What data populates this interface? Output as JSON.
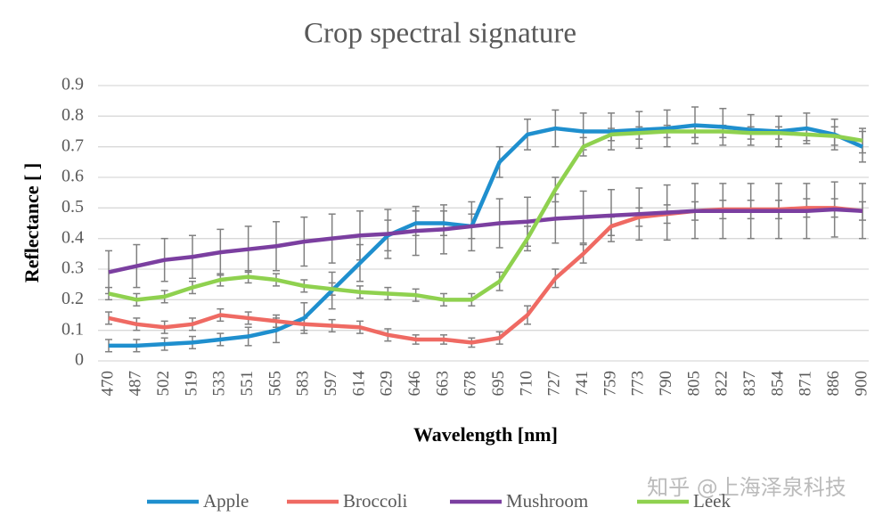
{
  "chart_data": {
    "type": "line",
    "title": "Crop spectral signature",
    "x_label": "Wavelength [nm]",
    "y_label": "Reflectance [ ]",
    "categories": [
      "470",
      "487",
      "502",
      "519",
      "533",
      "551",
      "565",
      "583",
      "597",
      "614",
      "629",
      "646",
      "663",
      "678",
      "695",
      "710",
      "727",
      "741",
      "759",
      "773",
      "790",
      "805",
      "822",
      "837",
      "854",
      "871",
      "886",
      "900"
    ],
    "ylim": [
      0,
      0.9
    ],
    "yticks": [
      0,
      0.1,
      0.2,
      0.3,
      0.4,
      0.5,
      0.6,
      0.7,
      0.8,
      0.9
    ],
    "grid": true,
    "legend": "bottom",
    "error_color": "#808080",
    "series": [
      {
        "name": "Apple",
        "color": "#1f8fce",
        "values": [
          0.05,
          0.05,
          0.055,
          0.06,
          0.07,
          0.08,
          0.1,
          0.14,
          0.23,
          0.32,
          0.41,
          0.45,
          0.45,
          0.44,
          0.65,
          0.74,
          0.76,
          0.75,
          0.75,
          0.755,
          0.76,
          0.77,
          0.765,
          0.755,
          0.75,
          0.76,
          0.74,
          0.7
        ],
        "errors": [
          0.02,
          0.02,
          0.02,
          0.02,
          0.02,
          0.03,
          0.04,
          0.05,
          0.06,
          0.06,
          0.05,
          0.04,
          0.04,
          0.04,
          0.05,
          0.05,
          0.06,
          0.06,
          0.06,
          0.06,
          0.06,
          0.06,
          0.06,
          0.05,
          0.05,
          0.05,
          0.05,
          0.05
        ]
      },
      {
        "name": "Broccoli",
        "color": "#ef6a63",
        "values": [
          0.14,
          0.12,
          0.11,
          0.12,
          0.15,
          0.14,
          0.13,
          0.12,
          0.115,
          0.11,
          0.085,
          0.07,
          0.07,
          0.06,
          0.075,
          0.15,
          0.27,
          0.35,
          0.44,
          0.47,
          0.48,
          0.49,
          0.495,
          0.495,
          0.495,
          0.5,
          0.5,
          0.49
        ],
        "errors": [
          0.02,
          0.02,
          0.02,
          0.02,
          0.02,
          0.02,
          0.02,
          0.02,
          0.02,
          0.02,
          0.02,
          0.015,
          0.015,
          0.015,
          0.02,
          0.03,
          0.03,
          0.03,
          0.03,
          0.03,
          0.03,
          0.03,
          0.03,
          0.03,
          0.03,
          0.03,
          0.03,
          0.03
        ]
      },
      {
        "name": "Mushroom",
        "color": "#7b3fa0",
        "values": [
          0.29,
          0.31,
          0.33,
          0.34,
          0.355,
          0.365,
          0.375,
          0.39,
          0.4,
          0.41,
          0.415,
          0.425,
          0.43,
          0.44,
          0.45,
          0.455,
          0.465,
          0.47,
          0.475,
          0.48,
          0.485,
          0.49,
          0.49,
          0.49,
          0.49,
          0.49,
          0.495,
          0.49
        ],
        "errors": [
          0.07,
          0.07,
          0.07,
          0.07,
          0.075,
          0.075,
          0.08,
          0.08,
          0.08,
          0.08,
          0.08,
          0.08,
          0.08,
          0.08,
          0.08,
          0.08,
          0.08,
          0.085,
          0.085,
          0.085,
          0.09,
          0.09,
          0.09,
          0.09,
          0.09,
          0.09,
          0.09,
          0.09
        ]
      },
      {
        "name": "Leek",
        "color": "#8fd14f",
        "values": [
          0.22,
          0.2,
          0.21,
          0.24,
          0.265,
          0.275,
          0.265,
          0.245,
          0.235,
          0.225,
          0.22,
          0.215,
          0.2,
          0.2,
          0.26,
          0.4,
          0.56,
          0.7,
          0.74,
          0.745,
          0.75,
          0.75,
          0.75,
          0.745,
          0.745,
          0.74,
          0.735,
          0.72
        ],
        "errors": [
          0.02,
          0.02,
          0.02,
          0.02,
          0.02,
          0.02,
          0.02,
          0.02,
          0.02,
          0.02,
          0.02,
          0.02,
          0.02,
          0.02,
          0.03,
          0.04,
          0.04,
          0.03,
          0.02,
          0.02,
          0.02,
          0.02,
          0.02,
          0.02,
          0.02,
          0.02,
          0.03,
          0.04
        ]
      }
    ],
    "watermark": "知乎 @上海泽泉科技"
  }
}
